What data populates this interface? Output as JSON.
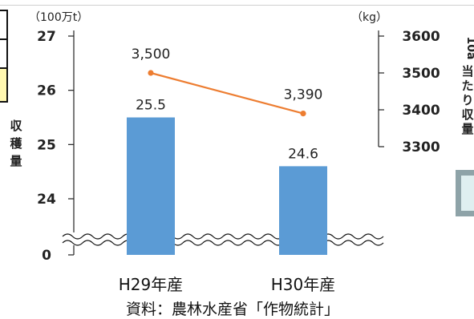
{
  "chart_data": {
    "type": "bar+line",
    "categories": [
      "H29年産",
      "H30年産"
    ],
    "series": [
      {
        "name": "",
        "type": "bar",
        "axis": "left",
        "values": [
          25.5,
          24.6
        ],
        "labels": [
          "25.5",
          "24.6"
        ],
        "color": "#5b9bd5"
      },
      {
        "name": "",
        "type": "line",
        "axis": "right",
        "values": [
          3500,
          3390
        ],
        "labels": [
          "3,500",
          "3,390"
        ],
        "color": "#ed7d31"
      }
    ],
    "left_axis": {
      "unit": "（100万t）",
      "label": "収穫量",
      "ticks": [
        "27",
        "26",
        "25",
        "24",
        "0"
      ],
      "tick_values": [
        27,
        26,
        25,
        24,
        0
      ],
      "ylim": [
        0,
        27
      ],
      "axis_break": true
    },
    "right_axis": {
      "unit": "（kg）",
      "label": "10a当たり収量",
      "ticks": [
        "3600",
        "3500",
        "3400",
        "3300"
      ],
      "tick_values": [
        3600,
        3500,
        3400,
        3300
      ],
      "ylim": [
        3300,
        3600
      ]
    },
    "source": "資料：農林水産省「作物統計」",
    "grid": false,
    "legend": "none"
  },
  "colors": {
    "bar": "#5b9bd5",
    "line": "#ed7d31",
    "axis": "#222222",
    "text": "#222222"
  }
}
